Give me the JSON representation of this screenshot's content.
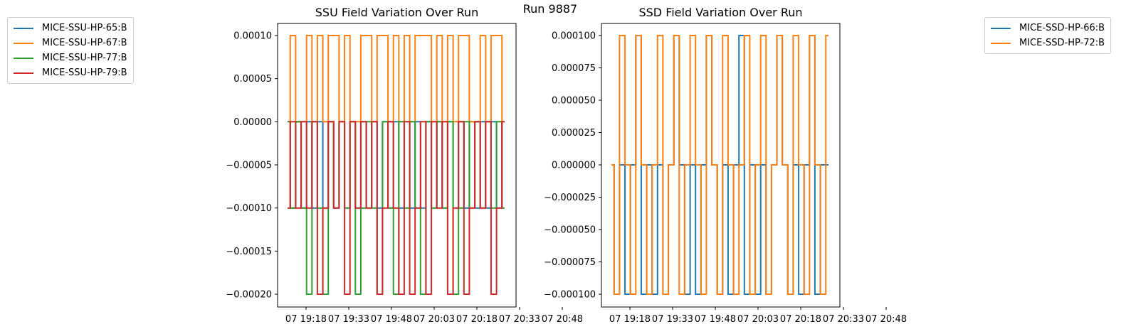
{
  "suptitle": "Run 9887",
  "colors": {
    "blue": "#1f77b4",
    "orange": "#ff7f0e",
    "green": "#2ca02c",
    "red": "#d62728"
  },
  "chart_data": [
    {
      "type": "line",
      "title": "SSU Field Variation Over Run",
      "xlabel": "",
      "ylabel": "",
      "legend_position": "outside upper-left",
      "x_tick_labels": [
        "07 19:18",
        "07 19:33",
        "07 19:48",
        "07 20:03",
        "07 20:18",
        "07 20:33",
        "07 20:48"
      ],
      "y_tick_labels": [
        "0.00010",
        "0.00005",
        "0.00000",
        "−0.00005",
        "−0.00010",
        "−0.00015",
        "−0.00020"
      ],
      "ylim": [
        -0.00021,
        0.000115
      ],
      "series": [
        {
          "name": "MICE-SSU-HP-65:B",
          "color": "#1f77b4",
          "levels": [
            0,
            -0.0001
          ],
          "values": [
            0,
            -0.0001,
            0,
            -0.0001,
            0,
            -0.0001,
            0,
            -0.0001,
            0,
            -0.0001,
            0,
            -0.0001,
            0,
            -0.0001,
            0,
            -0.0001,
            0,
            -0.0001,
            0,
            -0.0001,
            0,
            -0.0001,
            0,
            -0.0001,
            0,
            -0.0001,
            0,
            -0.0001,
            0,
            -0.0001,
            0,
            -0.0001,
            0,
            -0.0001,
            0,
            -0.0001,
            0,
            -0.0001,
            0,
            -0.0001,
            0
          ]
        },
        {
          "name": "MICE-SSU-HP-67:B",
          "color": "#ff7f0e",
          "levels": [
            0.0001,
            0
          ],
          "values": [
            0,
            0.0001,
            0,
            0,
            0.0001,
            0,
            0.0001,
            0,
            0.0001,
            0.0001,
            0,
            0.0001,
            0,
            0,
            0.0001,
            0.0001,
            0,
            0.0001,
            0.0001,
            0,
            0.0001,
            0,
            0.0001,
            0,
            0.0001,
            0.0001,
            0.0001,
            0,
            0.0001,
            0,
            0.0001,
            0,
            0.0001,
            0.0001,
            0,
            0,
            0.0001,
            0,
            0.0001,
            0.0001,
            0
          ]
        },
        {
          "name": "MICE-SSU-HP-77:B",
          "color": "#2ca02c",
          "levels": [
            0,
            -0.0001,
            -0.0002
          ],
          "values": [
            0,
            -0.0001,
            0,
            -0.0001,
            -0.0002,
            0,
            -0.0001,
            -0.0002,
            0,
            -0.0001,
            0,
            -0.0001,
            0,
            -0.0002,
            -0.0001,
            0,
            -0.0001,
            -0.0002,
            0,
            -0.0001,
            -0.0002,
            0,
            -0.0001,
            0,
            -0.0001,
            -0.0002,
            0,
            -0.0001,
            0,
            -0.0001,
            0,
            -0.0002,
            -0.0001,
            0,
            -0.0001,
            0,
            -0.0001,
            0,
            -0.0001,
            0,
            -0.0001
          ]
        },
        {
          "name": "MICE-SSU-HP-79:B",
          "color": "#d62728",
          "levels": [
            0,
            -0.0001,
            -0.0002
          ],
          "values": [
            -0.0001,
            0,
            -0.0001,
            0,
            -0.0001,
            0,
            -0.0002,
            -0.0001,
            0,
            -0.0001,
            0,
            -0.0002,
            0,
            -0.0001,
            0,
            -0.0001,
            0,
            -0.0002,
            -0.0001,
            0,
            -0.0001,
            -0.0002,
            0,
            -0.0002,
            -0.0001,
            0,
            -0.0002,
            0,
            -0.0001,
            0,
            -0.0002,
            -0.0001,
            0,
            -0.0002,
            -0.0001,
            0,
            -0.0001,
            0,
            -0.0002,
            -0.0001,
            0
          ]
        }
      ]
    },
    {
      "type": "line",
      "title": "SSD Field Variation Over Run",
      "xlabel": "",
      "ylabel": "",
      "legend_position": "outside upper-right",
      "x_tick_labels": [
        "07 19:18",
        "07 19:33",
        "07 19:48",
        "07 20:03",
        "07 20:18",
        "07 20:33",
        "07 20:48"
      ],
      "y_tick_labels": [
        "0.000100",
        "0.000075",
        "0.000050",
        "0.000025",
        "0.000000",
        "−0.000025",
        "−0.000050",
        "−0.000075",
        "−0.000100"
      ],
      "ylim": [
        -0.00011,
        0.00011
      ],
      "series": [
        {
          "name": "MICE-SSD-HP-66:B",
          "color": "#1f77b4",
          "levels": [
            0.0001,
            0,
            -0.0001
          ],
          "values": [
            0,
            -0.0001,
            0,
            -0.0001,
            0,
            0.0001,
            -0.0001,
            0,
            -0.0001,
            0,
            -0.0001,
            0,
            0.0001,
            0,
            -0.0001,
            0,
            -0.0001,
            0,
            0.0001,
            0,
            -0.0001,
            0,
            -0.0001,
            0,
            0.0001,
            -0.0001,
            0,
            -0.0001,
            0,
            -0.0001,
            0,
            0.0001,
            0,
            -0.0001,
            0,
            -0.0001,
            0,
            0.0001,
            -0.0001,
            0,
            0
          ]
        },
        {
          "name": "MICE-SSD-HP-72:B",
          "color": "#ff7f0e",
          "levels": [
            0.0001,
            0,
            -0.0001
          ],
          "values": [
            0,
            -0.0001,
            0.0001,
            0,
            -0.0001,
            0.0001,
            0,
            -0.0001,
            0,
            0.0001,
            -0.0001,
            0,
            0.0001,
            -0.0001,
            0,
            0.0001,
            0,
            -0.0001,
            0.0001,
            0,
            -0.0001,
            0.0001,
            0,
            -0.0001,
            0,
            0.0001,
            -0.0001,
            0,
            0.0001,
            -0.0001,
            0,
            0.0001,
            0,
            -0.0001,
            0.0001,
            0,
            -0.0001,
            0.0001,
            0,
            -0.0001,
            0.0001
          ]
        }
      ]
    }
  ]
}
